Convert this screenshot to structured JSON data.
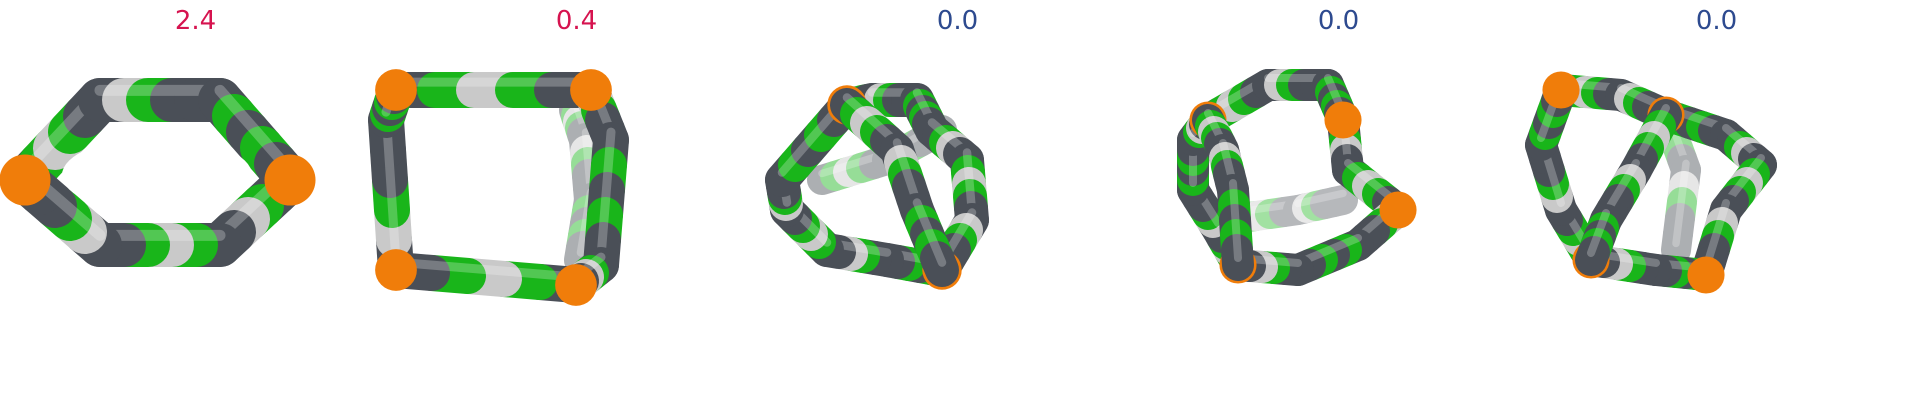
{
  "colors": {
    "high": "#d6134f",
    "low": "#2d4a8f",
    "carbon_dark": "#4a4f57",
    "carbon_light": "#c9c9c9",
    "green": "#19b51a",
    "orange": "#f07d0a"
  },
  "panels": [
    {
      "value": "2.4",
      "level": "high"
    },
    {
      "value": "0.4",
      "level": "high"
    },
    {
      "value": "0.0",
      "level": "low"
    },
    {
      "value": "0.0",
      "level": "low"
    },
    {
      "value": "0.0",
      "level": "low"
    }
  ]
}
